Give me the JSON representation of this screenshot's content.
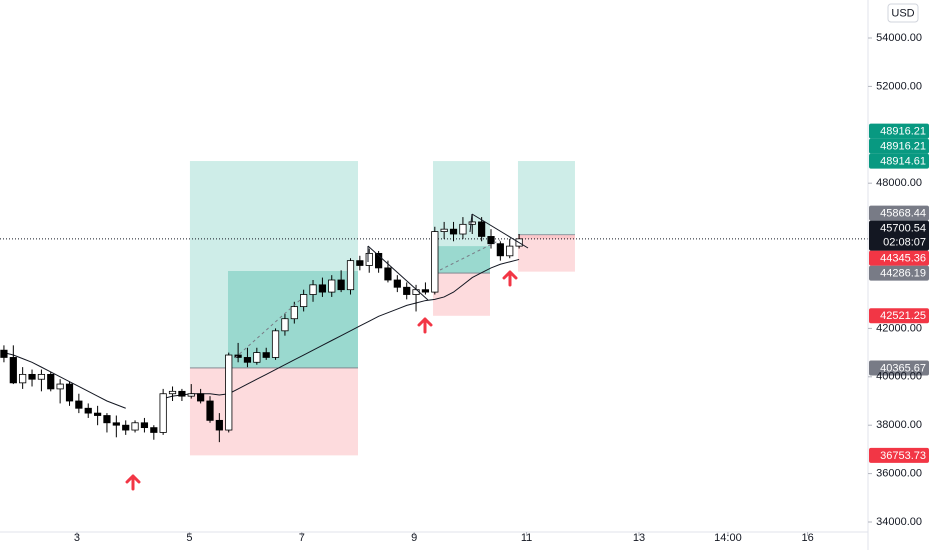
{
  "chart_data": {
    "type": "candlestick",
    "currency": "USD",
    "x": [
      1.7,
      1.867,
      2.033,
      2.2,
      2.367,
      2.533,
      2.7,
      2.867,
      3.033,
      3.2,
      3.367,
      3.533,
      3.7,
      3.867,
      4.033,
      4.2,
      4.367,
      4.533,
      4.7,
      4.867,
      5.033,
      5.2,
      5.367,
      5.533,
      5.7,
      5.867,
      6.033,
      6.2,
      6.367,
      6.533,
      6.7,
      6.867,
      7.033,
      7.2,
      7.367,
      7.533,
      7.7,
      7.867,
      8.033,
      8.2,
      8.367,
      8.533,
      8.7,
      8.867,
      9.033,
      9.2,
      9.367,
      9.533,
      9.7,
      9.867,
      10.033,
      10.2,
      10.367,
      10.533,
      10.7,
      10.867
    ],
    "open": [
      41100,
      40800,
      39750,
      40100,
      39900,
      40100,
      39500,
      39700,
      39000,
      38700,
      38500,
      38400,
      38100,
      38000,
      37800,
      38100,
      37900,
      37700,
      39300,
      39400,
      39200,
      39300,
      39000,
      38200,
      37800,
      40900,
      40800,
      40600,
      41000,
      40800,
      41900,
      42400,
      42900,
      43400,
      43800,
      43500,
      44000,
      43600,
      44800,
      44600,
      45100,
      44500,
      44000,
      43700,
      43400,
      43600,
      43500,
      46000,
      46100,
      45900,
      46300,
      46400,
      45800,
      45500,
      45000,
      45400
    ],
    "high": [
      41300,
      41300,
      40400,
      40300,
      40300,
      40200,
      39900,
      39800,
      39300,
      38900,
      38800,
      38500,
      38400,
      38200,
      38200,
      38300,
      38000,
      39500,
      39600,
      39500,
      39700,
      39500,
      39200,
      38500,
      41000,
      41400,
      41200,
      41200,
      41200,
      42000,
      42600,
      43100,
      43600,
      44000,
      44100,
      44200,
      44400,
      44900,
      45000,
      45300,
      45200,
      44800,
      44200,
      43900,
      43800,
      43900,
      46200,
      46400,
      46400,
      46600,
      46700,
      46600,
      46100,
      45600,
      45700,
      45900
    ],
    "low": [
      40600,
      39700,
      39500,
      39600,
      39400,
      39400,
      38900,
      38800,
      38500,
      38300,
      38000,
      37700,
      37500,
      37600,
      37700,
      37700,
      37400,
      37600,
      39000,
      39000,
      39100,
      38900,
      38100,
      37300,
      37700,
      40600,
      40400,
      40500,
      40700,
      40700,
      41700,
      42200,
      42700,
      43100,
      43300,
      43300,
      43500,
      43400,
      44400,
      44300,
      44300,
      43900,
      43500,
      43200,
      42700,
      43400,
      43400,
      45700,
      45600,
      45700,
      45900,
      45600,
      45300,
      44800,
      44900,
      45300
    ],
    "close": [
      40800,
      39750,
      40100,
      39900,
      40100,
      39500,
      39700,
      39000,
      38700,
      38500,
      38400,
      38100,
      38000,
      37800,
      38100,
      37900,
      37700,
      39300,
      39400,
      39200,
      39300,
      39000,
      38200,
      37800,
      40900,
      40800,
      40600,
      41000,
      40800,
      41900,
      42400,
      42900,
      43400,
      43800,
      43500,
      44000,
      43600,
      44800,
      44600,
      45100,
      44500,
      44000,
      43700,
      43400,
      43600,
      43500,
      46000,
      46100,
      45900,
      46300,
      46400,
      45800,
      45500,
      45000,
      45400,
      45700
    ],
    "ma": [
      41000,
      40900,
      40750,
      40600,
      40400,
      40200,
      40000,
      39800,
      39600,
      39400,
      39200,
      39000,
      38850,
      38700,
      null,
      null,
      null,
      39100,
      39200,
      39250,
      39300,
      39300,
      39300,
      39250,
      39300,
      39500,
      39700,
      39900,
      40100,
      40300,
      40500,
      40700,
      40900,
      41100,
      41300,
      41500,
      41700,
      41900,
      42100,
      42300,
      42500,
      42650,
      42800,
      42950,
      43050,
      43150,
      43200,
      43300,
      43500,
      43800,
      44100,
      44300,
      44500,
      44650,
      44750,
      44850
    ],
    "up_color": "#ffffff",
    "down_color": "#000000",
    "positions": [
      {
        "x_start": 5.01,
        "x_fill": 5.687,
        "x_end": 8.0,
        "entry": 40365.67,
        "stop": 36753.73,
        "target": 48916.21,
        "fill_to": 44372
      },
      {
        "x_start": 9.335,
        "x_fill": 9.335,
        "x_end": 10.349,
        "entry": 44286.19,
        "stop": 42521.25,
        "target": 48914.61,
        "fill_to": 45400
      },
      {
        "x_start": 10.847,
        "x_fill": 10.847,
        "x_end": 11.861,
        "entry": 45868.44,
        "stop": 44345.36,
        "target": 48916.21,
        "fill_to": 45700.54
      }
    ],
    "current_price": 45700.54,
    "countdown": "02:08:07",
    "xlim": [
      1.63,
      17.075
    ],
    "xticks": [
      3,
      5,
      7,
      9,
      11,
      13,
      {
        "value": 14.583,
        "label": "14:00"
      },
      16
    ],
    "ylim": [
      33587,
      55570
    ],
    "yticks": [
      {
        "value": 34000,
        "label": "34000.00"
      },
      {
        "value": 36000,
        "label": "36000.00"
      },
      {
        "value": 38000,
        "label": "38000.00"
      },
      {
        "value": 40000,
        "label": "40000.00"
      },
      {
        "value": 42000,
        "label": "42000.00"
      },
      {
        "value": 48000,
        "label": "48000.00"
      },
      {
        "value": 52000,
        "label": "52000.00"
      },
      {
        "value": 54000,
        "label": "54000.00"
      }
    ]
  }
}
